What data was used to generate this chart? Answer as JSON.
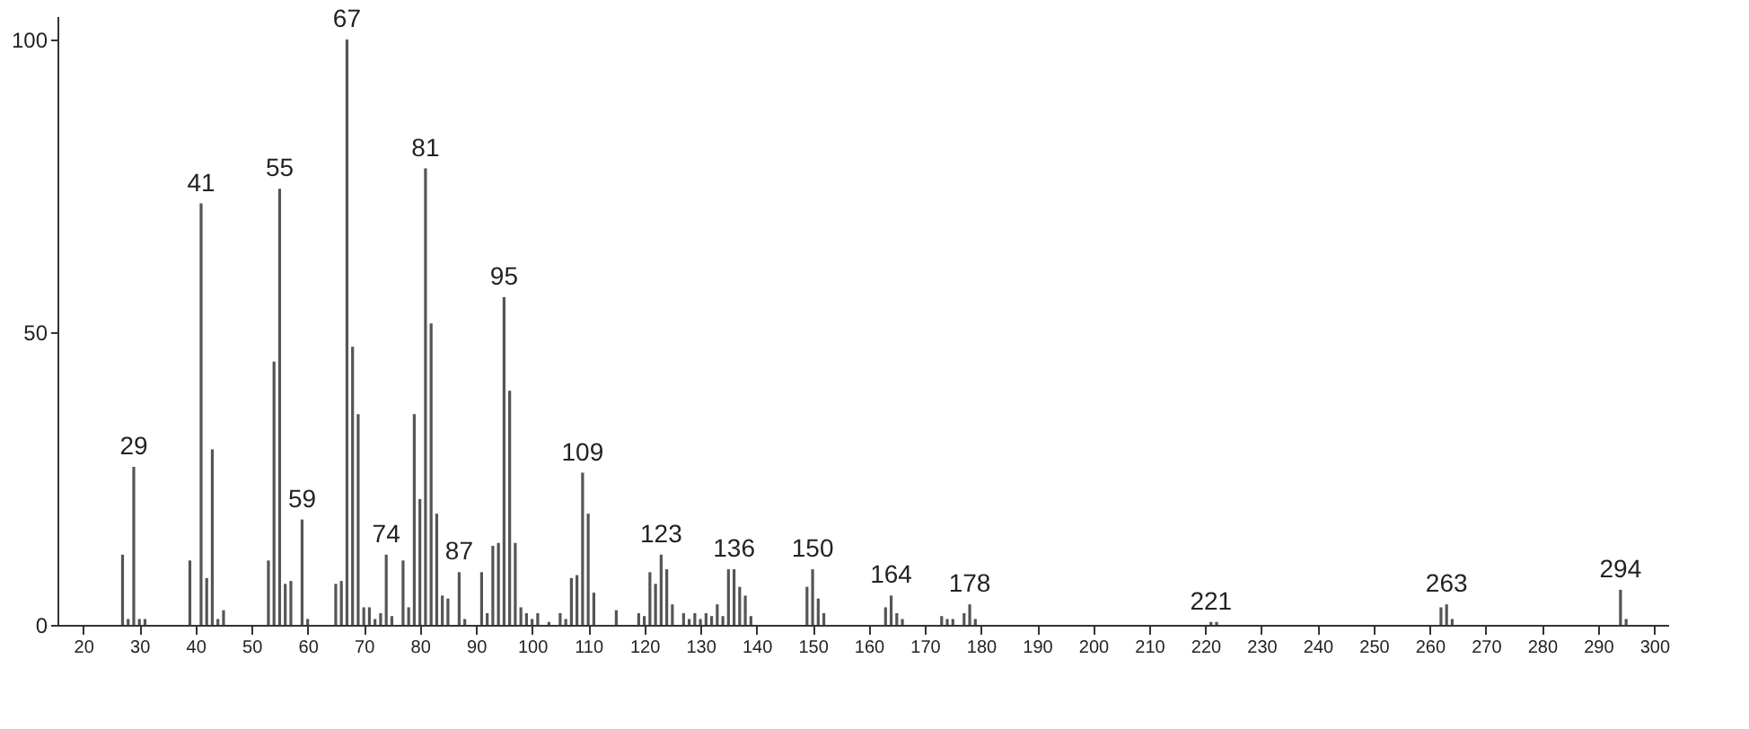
{
  "chart_data": {
    "type": "bar",
    "x": [
      27,
      28,
      29,
      30,
      31,
      39,
      41,
      42,
      43,
      44,
      45,
      53,
      54,
      55,
      56,
      57,
      59,
      60,
      65,
      66,
      67,
      68,
      69,
      70,
      71,
      72,
      73,
      74,
      75,
      77,
      78,
      79,
      80,
      81,
      82,
      83,
      84,
      85,
      87,
      88,
      91,
      92,
      93,
      94,
      95,
      96,
      97,
      98,
      99,
      100,
      101,
      103,
      105,
      106,
      107,
      108,
      109,
      110,
      111,
      115,
      119,
      120,
      121,
      122,
      123,
      124,
      125,
      127,
      128,
      129,
      130,
      131,
      132,
      133,
      134,
      135,
      136,
      137,
      138,
      139,
      149,
      150,
      151,
      152,
      163,
      164,
      165,
      166,
      173,
      174,
      175,
      177,
      178,
      179,
      221,
      222,
      262,
      263,
      264,
      294,
      295
    ],
    "values": [
      12,
      1,
      27,
      1,
      1,
      11,
      72,
      8,
      30,
      1,
      2.5,
      11,
      45,
      74.5,
      7,
      7.5,
      18,
      1,
      7,
      7.5,
      100,
      47.5,
      36,
      3,
      3,
      1,
      2,
      12,
      1.5,
      11,
      3,
      36,
      21.5,
      78,
      51.5,
      19,
      5,
      4.5,
      9,
      1,
      9,
      2,
      13.5,
      14,
      56,
      40,
      14,
      3,
      2,
      1,
      2,
      0.5,
      2,
      1,
      8,
      8.5,
      26,
      19,
      5.5,
      2.5,
      2,
      1.5,
      9,
      7,
      12,
      9.5,
      3.5,
      2,
      1,
      2,
      1,
      2,
      1.5,
      3.5,
      1.5,
      9.5,
      9.5,
      6.5,
      5,
      1.5,
      6.5,
      9.5,
      4.5,
      2,
      3,
      5,
      2,
      1,
      1.5,
      1,
      1,
      2,
      3.5,
      1,
      0.5,
      0.5,
      3,
      3.5,
      1,
      6,
      1
    ],
    "color": "#555555",
    "xlim": [
      15.4,
      302.5
    ],
    "ylim": [
      0,
      104
    ],
    "xticks": [
      20,
      30,
      40,
      50,
      60,
      70,
      80,
      90,
      100,
      110,
      120,
      130,
      140,
      150,
      160,
      170,
      180,
      190,
      200,
      210,
      220,
      230,
      240,
      250,
      260,
      270,
      280,
      290,
      300
    ],
    "yticks": [
      0,
      50,
      100
    ],
    "grid": false,
    "annotations": [
      {
        "text": "29",
        "x": 29,
        "y": 27
      },
      {
        "text": "41",
        "x": 41,
        "y": 72
      },
      {
        "text": "55",
        "x": 55,
        "y": 74.5
      },
      {
        "text": "59",
        "x": 59,
        "y": 18
      },
      {
        "text": "67",
        "x": 67,
        "y": 100
      },
      {
        "text": "74",
        "x": 74,
        "y": 12
      },
      {
        "text": "81",
        "x": 81,
        "y": 78
      },
      {
        "text": "87",
        "x": 87,
        "y": 9
      },
      {
        "text": "95",
        "x": 95,
        "y": 56
      },
      {
        "text": "109",
        "x": 109,
        "y": 26
      },
      {
        "text": "123",
        "x": 123,
        "y": 12
      },
      {
        "text": "136",
        "x": 136,
        "y": 9.5
      },
      {
        "text": "150",
        "x": 150,
        "y": 9.5
      },
      {
        "text": "164",
        "x": 164,
        "y": 5
      },
      {
        "text": "178",
        "x": 178,
        "y": 3.5
      },
      {
        "text": "221",
        "x": 221,
        "y": 0.5
      },
      {
        "text": "263",
        "x": 263,
        "y": 3.5
      },
      {
        "text": "294",
        "x": 294,
        "y": 6
      }
    ]
  }
}
